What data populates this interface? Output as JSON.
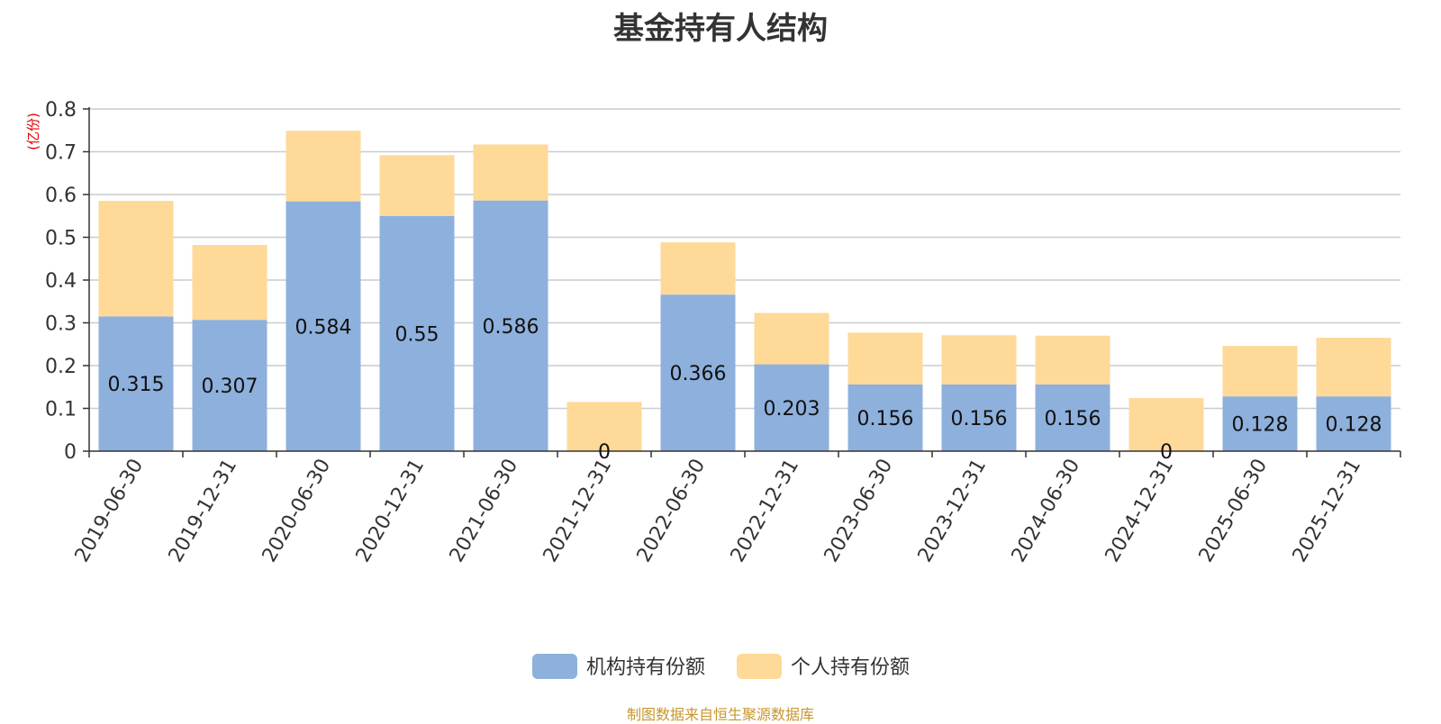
{
  "title": "基金持有人结构",
  "source_note": "制图数据来自恒生聚源数据库",
  "colors": {
    "institution": "#8eb0dc",
    "individual": "#fed998",
    "grid": "#cccccc",
    "axis": "#333333"
  },
  "chart_data": {
    "type": "bar",
    "stacked": true,
    "title": "基金持有人结构",
    "ylabel": "(亿份)",
    "ylim": [
      0,
      0.8
    ],
    "yticks": [
      0,
      0.1,
      0.2,
      0.3,
      0.4,
      0.5,
      0.6,
      0.7,
      0.8
    ],
    "grid": true,
    "legend_position": "bottom-center",
    "categories": [
      "2019-06-30",
      "2019-12-31",
      "2020-06-30",
      "2020-12-31",
      "2021-06-30",
      "2021-12-31",
      "2022-06-30",
      "2022-12-31",
      "2023-06-30",
      "2023-12-31",
      "2024-06-30",
      "2024-12-31",
      "2025-06-30",
      "2025-12-31"
    ],
    "series": [
      {
        "name": "机构持有份额",
        "values": [
          0.315,
          0.307,
          0.584,
          0.55,
          0.586,
          0,
          0.366,
          0.203,
          0.156,
          0.156,
          0.156,
          0,
          0.128,
          0.128
        ],
        "labels": [
          "0.315",
          "0.307",
          "0.584",
          "0.55",
          "0.586",
          "0",
          "0.366",
          "0.203",
          "0.156",
          "0.156",
          "0.156",
          "0",
          "0.128",
          "0.128"
        ]
      },
      {
        "name": "个人持有份额",
        "values": [
          0.27,
          0.175,
          0.165,
          0.142,
          0.131,
          0.115,
          0.122,
          0.12,
          0.121,
          0.115,
          0.114,
          0.124,
          0.118,
          0.137
        ]
      }
    ]
  }
}
